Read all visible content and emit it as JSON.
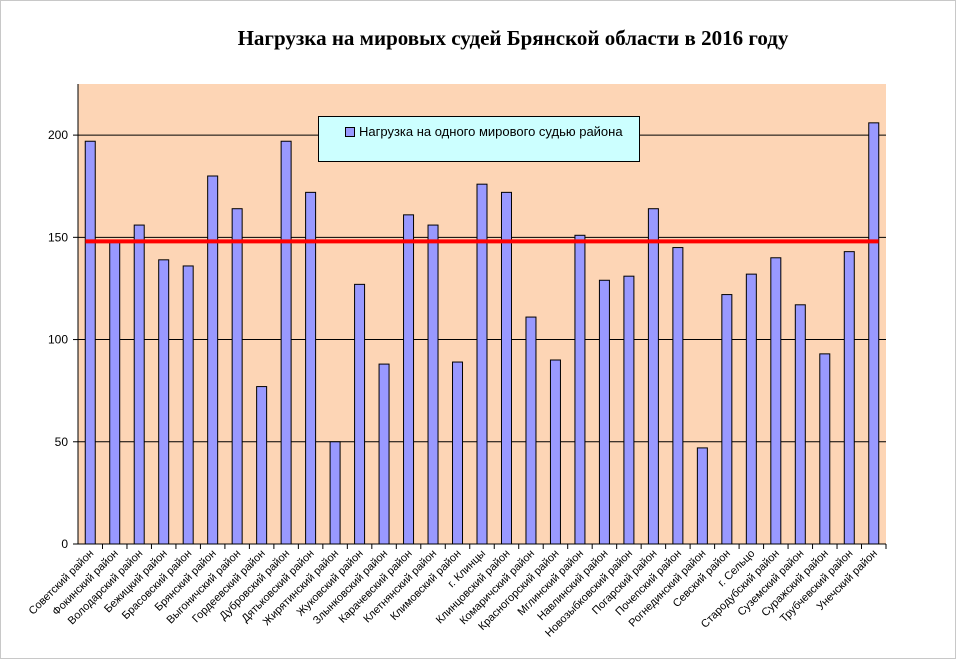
{
  "chart_data": {
    "type": "bar",
    "title": "Нагрузка на мировых судей Брянской области в 2016 году",
    "categories": [
      "Советский район",
      "Фокинский район",
      "Володарский район",
      "Бежицкий район",
      "Брасовский район",
      "Брянский район",
      "Выгоничский район",
      "Гордеевский район",
      "Дубровский район",
      "Дятьковский район",
      "Жирятинский район",
      "Жуковский район",
      "Злынковский район",
      "Карачевский район",
      "Клетнянский район",
      "Климовский район",
      "г. Клинцы",
      "Клинцовский район",
      "Комаричский район",
      "Красногорский район",
      "Мглинский район",
      "Навлинский район",
      "Новозыбковский район",
      "Погарский район",
      "Почепский район",
      "Рогнединский район",
      "Севский район",
      "г. Сельцо",
      "Стародубский район",
      "Суземский район",
      "Суражский район",
      "Трубчевский район",
      "Унечский район"
    ],
    "series": [
      {
        "name": "Нагрузка на одного мирового судью района",
        "values": [
          197,
          148,
          156,
          139,
          136,
          180,
          164,
          77,
          197,
          172,
          50,
          127,
          88,
          161,
          156,
          89,
          176,
          172,
          111,
          90,
          151,
          129,
          131,
          164,
          145,
          47,
          122,
          132,
          140,
          117,
          93,
          143,
          206
        ]
      }
    ],
    "average_line": 148,
    "ylim": [
      0,
      225
    ],
    "yticks": [
      0,
      50,
      100,
      150,
      200
    ],
    "xlabel": "",
    "ylabel": "",
    "grid": true,
    "legend_position": "top-center",
    "colors": {
      "bar": "#9999ff",
      "bar_border": "#000000",
      "plot_bg": "#fdd5b5",
      "average_line": "#ff0000",
      "legend_bg": "#ccffff"
    }
  }
}
